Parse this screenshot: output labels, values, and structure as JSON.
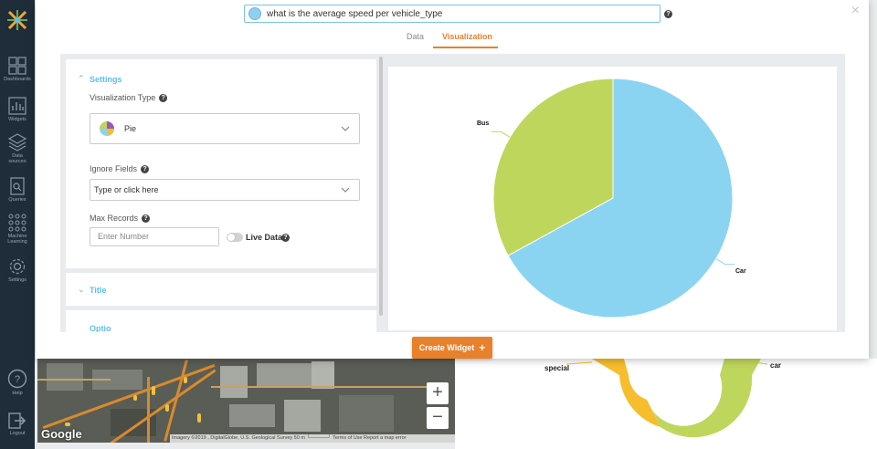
{
  "sidebar": {
    "items": [
      {
        "label": "Dashboards",
        "icon": "dashboards-icon"
      },
      {
        "label": "Widgets",
        "icon": "widgets-icon"
      },
      {
        "label": "Data sources",
        "icon": "data-sources-icon"
      },
      {
        "label": "Queries",
        "icon": "queries-icon"
      },
      {
        "label": "Machine Learning",
        "icon": "machine-learning-icon"
      },
      {
        "label": "Settings",
        "icon": "settings-icon"
      },
      {
        "label": "Help",
        "icon": "help-icon"
      },
      {
        "label": "Logout",
        "icon": "logout-icon"
      }
    ]
  },
  "query": {
    "text": "what is the average speed per vehicle_type",
    "help": "?"
  },
  "tabs": [
    {
      "label": "Data",
      "active": false
    },
    {
      "label": "Visualization",
      "active": true
    }
  ],
  "settings": {
    "title": "Settings",
    "viz_type_label": "Visualization Type",
    "viz_type_value": "Pie",
    "ignore_fields_label": "Ignore Fields",
    "ignore_fields_placeholder": "Type or click here",
    "max_records_label": "Max Records",
    "max_records_placeholder": "Enter Number",
    "live_data_label": "Live Data",
    "live_data_on": false
  },
  "collapsed_sections": {
    "title": "Title",
    "next": "Optio"
  },
  "create_button": {
    "label": "Create Widget",
    "icon": "+"
  },
  "chart_data": {
    "type": "pie",
    "categories": [
      "Car",
      "Bus"
    ],
    "values": [
      67,
      33
    ],
    "colors": [
      "#8ad4f2",
      "#bfd65d"
    ]
  },
  "background": {
    "map": {
      "attribution": "Imagery ©2019 , DigitalGlobe, U.S. Geological Survey   50 m └─────┘   Terms of Use   Report a map error",
      "logo": "Google",
      "zoom_in": "+",
      "zoom_out": "−"
    },
    "donut_labels": [
      "special",
      "car"
    ],
    "donut_colors": [
      "#f6be2c",
      "#bfd65d"
    ]
  },
  "close_icon": "×"
}
